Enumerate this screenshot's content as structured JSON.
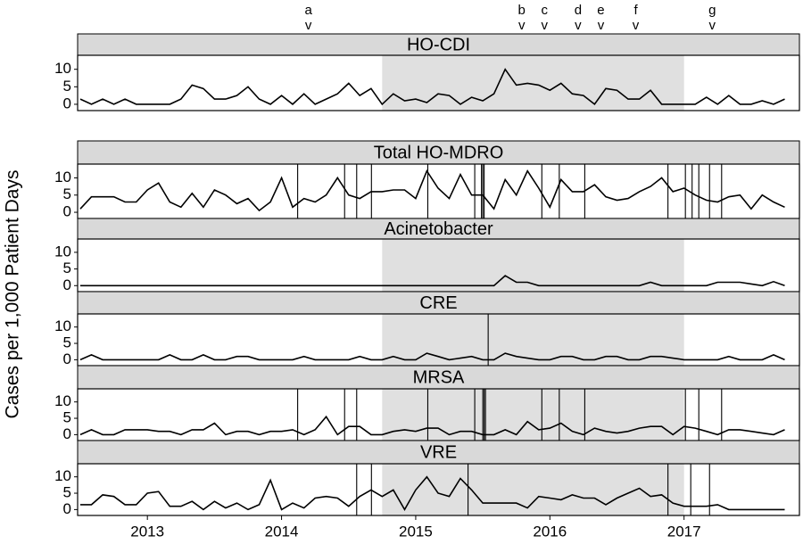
{
  "chart_data": {
    "type": "line",
    "ylabel": "Cases per 1,000 Patient Days",
    "xlim": [
      2012.48,
      2017.86
    ],
    "xticks": [
      2013,
      2014,
      2015,
      2016,
      2017
    ],
    "ylim": [
      -1.8,
      14
    ],
    "yticks": [
      0,
      5,
      10
    ],
    "shaded_range": [
      2014.75,
      2017.0
    ],
    "marker_glyph": "v",
    "markers": [
      {
        "label": "a",
        "x": 2014.2
      },
      {
        "label": "b",
        "x": 2015.79
      },
      {
        "label": "c",
        "x": 2015.96
      },
      {
        "label": "d",
        "x": 2016.21
      },
      {
        "label": "e",
        "x": 2016.38
      },
      {
        "label": "f",
        "x": 2016.64
      },
      {
        "label": "g",
        "x": 2017.21
      }
    ],
    "x": [
      2012.5,
      2012.583,
      2012.667,
      2012.75,
      2012.833,
      2012.917,
      2013.0,
      2013.083,
      2013.167,
      2013.25,
      2013.333,
      2013.417,
      2013.5,
      2013.583,
      2013.667,
      2013.75,
      2013.833,
      2013.917,
      2014.0,
      2014.083,
      2014.167,
      2014.25,
      2014.333,
      2014.417,
      2014.5,
      2014.583,
      2014.667,
      2014.75,
      2014.833,
      2014.917,
      2015.0,
      2015.083,
      2015.167,
      2015.25,
      2015.333,
      2015.417,
      2015.5,
      2015.583,
      2015.667,
      2015.75,
      2015.833,
      2015.917,
      2016.0,
      2016.083,
      2016.167,
      2016.25,
      2016.333,
      2016.417,
      2016.5,
      2016.583,
      2016.667,
      2016.75,
      2016.833,
      2016.917,
      2017.0,
      2017.083,
      2017.167,
      2017.25,
      2017.333,
      2017.417,
      2017.5,
      2017.583,
      2017.667,
      2017.75
    ],
    "series": [
      {
        "name": "HO-CDI",
        "color": "#000000",
        "shaded": true,
        "events": [],
        "values": [
          1.5,
          0,
          1.5,
          0,
          1.5,
          0,
          0,
          0,
          0,
          1.5,
          5.5,
          4.5,
          1.5,
          1.5,
          2.5,
          5,
          1.5,
          0,
          2.5,
          0,
          3,
          0,
          1.5,
          3,
          6,
          2.5,
          4.5,
          0,
          3,
          1,
          1.5,
          0.5,
          3,
          2.5,
          0,
          2,
          1,
          3,
          10,
          5.5,
          6,
          5.5,
          4,
          6,
          3,
          2.5,
          0,
          4.5,
          4,
          1.5,
          1.5,
          4,
          0,
          0,
          0,
          0,
          2,
          0,
          2.5,
          0,
          0,
          1,
          0,
          1.5
        ]
      },
      {
        "name": "Total HO-MDRO",
        "color": "#000000",
        "shaded": false,
        "events": [
          2014.12,
          2014.47,
          2014.56,
          2014.67,
          2015.09,
          2015.44,
          2015.49,
          2015.5,
          2015.51,
          2015.94,
          2016.07,
          2016.26,
          2016.88,
          2017.01,
          2017.06,
          2017.11,
          2017.19,
          2017.28
        ],
        "values": [
          1,
          4.5,
          4.5,
          4.5,
          3,
          3,
          6.5,
          8.5,
          3,
          1.5,
          5.5,
          1.5,
          6.5,
          5,
          2.5,
          4,
          0.5,
          3,
          10,
          1.5,
          4,
          3,
          5,
          10,
          5,
          4,
          6,
          6,
          6.5,
          6.5,
          4,
          12,
          7,
          4,
          11,
          5,
          5,
          1,
          9.5,
          5,
          12,
          7,
          1.5,
          9.5,
          6,
          6,
          8,
          4.5,
          3.5,
          4,
          6,
          7.5,
          10,
          6,
          7,
          5,
          3.5,
          3,
          4.5,
          5,
          1,
          5,
          3,
          1.5
        ]
      },
      {
        "name": "Acinetobacter",
        "color": "#000000",
        "shaded": true,
        "events": [],
        "values": [
          0,
          0,
          0,
          0,
          0,
          0,
          0,
          0,
          0,
          0,
          0,
          0,
          0,
          0,
          0,
          0,
          0,
          0,
          0,
          0,
          0,
          0,
          0,
          0,
          0,
          0,
          0,
          0,
          0,
          0,
          0,
          0,
          0,
          0,
          0,
          0,
          0,
          0,
          3,
          1,
          1,
          0,
          0,
          0,
          0,
          0,
          0,
          0,
          0,
          0,
          0,
          1,
          0,
          0,
          0,
          0,
          0,
          1,
          1,
          1,
          0.5,
          0,
          1.2,
          0
        ]
      },
      {
        "name": "CRE",
        "color": "#000000",
        "shaded": true,
        "events": [
          2015.54
        ],
        "values": [
          0,
          1.5,
          0,
          0,
          0,
          0,
          0,
          0,
          1.5,
          0,
          0,
          1.5,
          0,
          0,
          1,
          1,
          0,
          0,
          0,
          0,
          1,
          0,
          0,
          0,
          0,
          1,
          0,
          0,
          1,
          0,
          0,
          2,
          1,
          0,
          0.5,
          1,
          0,
          0,
          2,
          1,
          0.5,
          0,
          0,
          1,
          1,
          0,
          0,
          1,
          1,
          0,
          0,
          1,
          1,
          0.5,
          0,
          0,
          0,
          0,
          1,
          0,
          0,
          0,
          1.5,
          0
        ]
      },
      {
        "name": "MRSA",
        "color": "#000000",
        "shaded": true,
        "events": [
          2014.12,
          2014.47,
          2014.56,
          2015.09,
          2015.44,
          2015.5,
          2015.51,
          2015.52,
          2015.94,
          2016.07,
          2016.26,
          2017.01,
          2017.11,
          2017.28
        ],
        "values": [
          0,
          1.5,
          0,
          0,
          1.5,
          1.5,
          1.5,
          1,
          1,
          0,
          1.5,
          1.5,
          3.5,
          0,
          1,
          1,
          0,
          1,
          1,
          1.5,
          0,
          1.5,
          5.5,
          0,
          2.5,
          2.5,
          0,
          0,
          1,
          1.5,
          1,
          2,
          2,
          0,
          1,
          1,
          0,
          0,
          1.5,
          0,
          4,
          1.5,
          2,
          3.5,
          1,
          0,
          2,
          1,
          0.5,
          1,
          2,
          2.5,
          2.5,
          0,
          2.5,
          2,
          1,
          0,
          1.5,
          1.5,
          1,
          0.5,
          0,
          1.5
        ]
      },
      {
        "name": "VRE",
        "color": "#000000",
        "shaded": true,
        "events": [
          2014.56,
          2014.67,
          2015.39,
          2016.88,
          2017.05,
          2017.19
        ],
        "values": [
          1.5,
          1.5,
          4.5,
          4,
          1.5,
          1.5,
          5,
          5.5,
          1,
          1,
          2.5,
          0,
          2.5,
          0.5,
          2,
          0,
          1.5,
          9,
          0,
          2,
          0.5,
          3.5,
          4,
          3.5,
          1,
          4,
          6,
          4,
          6,
          0,
          6,
          10,
          5,
          4,
          9.5,
          6,
          2,
          2,
          2,
          2,
          0.5,
          4,
          3.5,
          3,
          4.5,
          3.5,
          3.5,
          1.5,
          3.5,
          5,
          6.5,
          4,
          4.5,
          2,
          1,
          1,
          1,
          1.5,
          0,
          0,
          0,
          0,
          0,
          0
        ]
      }
    ]
  }
}
